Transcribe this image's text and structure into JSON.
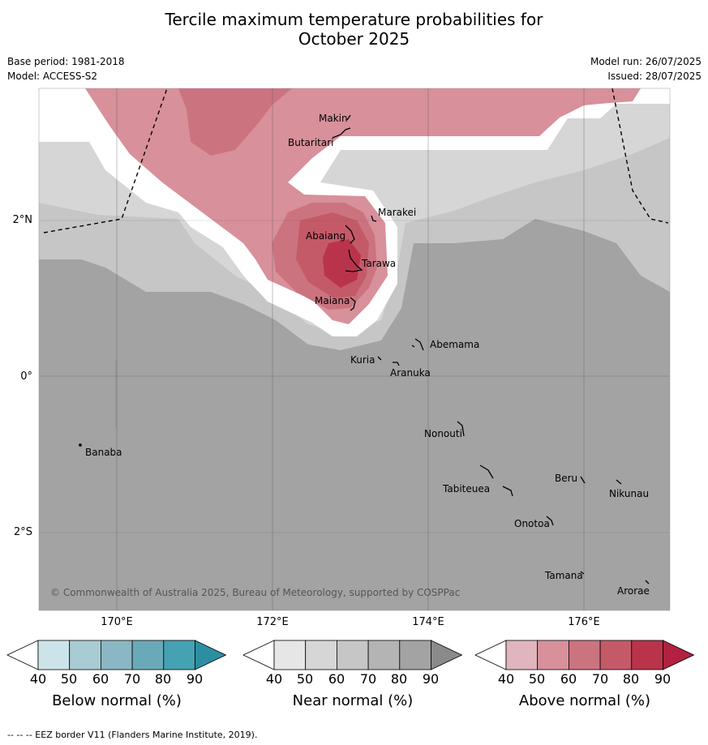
{
  "title": {
    "line1": "Tercile maximum temperature probabilities for",
    "line2": "October 2025"
  },
  "meta": {
    "base_period": "Base period: 1981-2018",
    "model": "Model: ACCESS-S2",
    "model_run": "Model run: 26/07/2025",
    "issued": "Issued: 28/07/2025"
  },
  "axes": {
    "lat_labels": [
      "2°N",
      "0°",
      "2°S"
    ],
    "lon_labels": [
      "170°E",
      "172°E",
      "174°E",
      "176°E"
    ]
  },
  "places": [
    "Makin",
    "Butaritari",
    "Marakei",
    "Abaiang",
    "Tarawa",
    "Maiana",
    "Abemama",
    "Kuria",
    "Aranuka",
    "Nonouti",
    "Banaba",
    "Beru",
    "Tabiteuea",
    "Nikunau",
    "Onotoa",
    "Tamana",
    "Arorae"
  ],
  "copyright": "© Commonwealth of Australia 2025, Bureau of Meteorology, supported by COSPPac",
  "colorbars": [
    {
      "label": "Below normal (%)",
      "ticks": [
        "40",
        "50",
        "60",
        "70",
        "80",
        "90"
      ],
      "colors": [
        "#ffffff",
        "#cde3ea",
        "#a9cbd3",
        "#8ab7c3",
        "#6aa9b8",
        "#45a2b2",
        "#2e8ea1"
      ]
    },
    {
      "label": "Near normal (%)",
      "ticks": [
        "40",
        "50",
        "60",
        "70",
        "80",
        "90"
      ],
      "colors": [
        "#ffffff",
        "#e6e6e6",
        "#d6d6d6",
        "#c6c6c6",
        "#b4b4b4",
        "#a3a3a3",
        "#8a8a8a"
      ]
    },
    {
      "label": "Above normal (%)",
      "ticks": [
        "40",
        "50",
        "60",
        "70",
        "80",
        "90"
      ],
      "colors": [
        "#ffffff",
        "#e0b5bd",
        "#d8909a",
        "#cc7380",
        "#c45a68",
        "#b9344b",
        "#b2213f"
      ]
    }
  ],
  "footer": "--  --  -- EEZ border V11 (Flanders Marine Institute, 2019)."
}
